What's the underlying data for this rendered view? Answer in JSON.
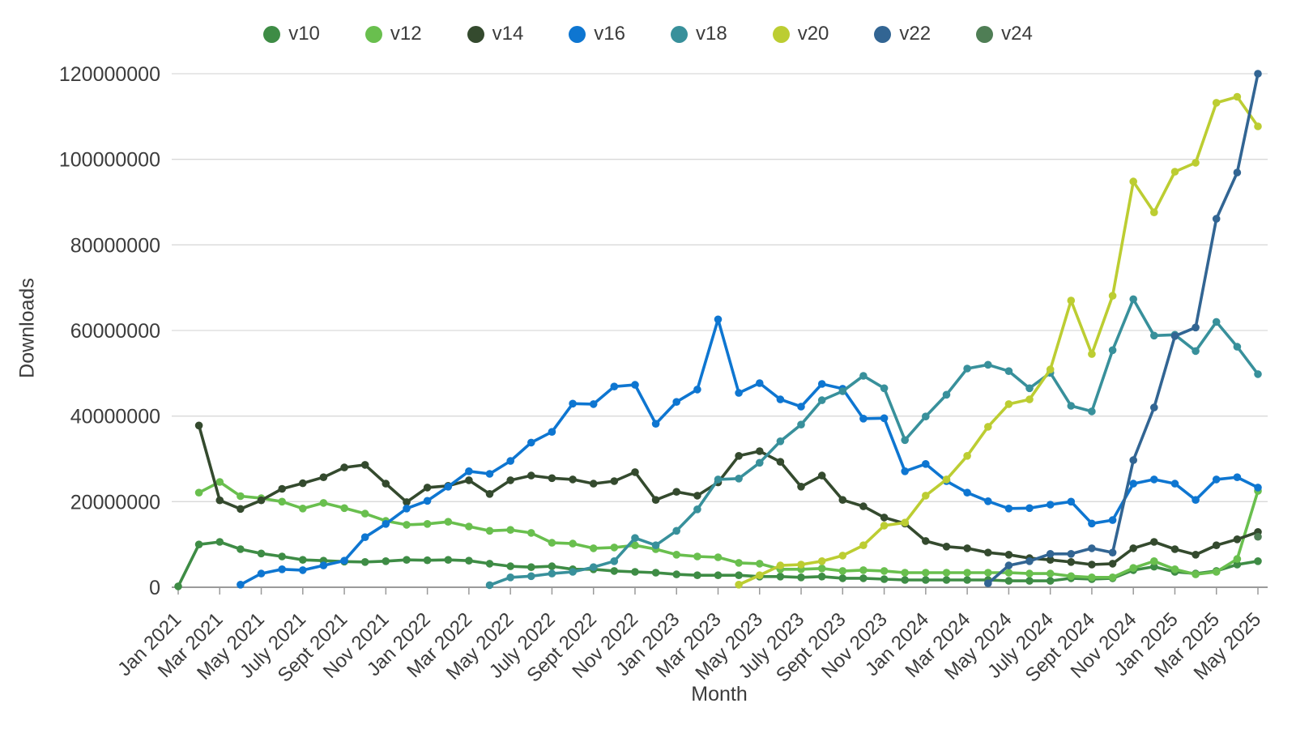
{
  "chart_data": {
    "type": "line",
    "title": "",
    "xlabel": "Month",
    "ylabel": "Downloads",
    "grid": true,
    "legend_position": "top",
    "ylim": [
      0,
      120000000
    ],
    "y_ticks": [
      0,
      20000000,
      40000000,
      60000000,
      80000000,
      100000000,
      120000000
    ],
    "x": [
      "Jan 2021",
      "Feb 2021",
      "Mar 2021",
      "Apr 2021",
      "May 2021",
      "June 2021",
      "July 2021",
      "Aug 2021",
      "Sept 2021",
      "Oct 2021",
      "Nov 2021",
      "Dec 2021",
      "Jan 2022",
      "Feb 2022",
      "Mar 2022",
      "Apr 2022",
      "May 2022",
      "June 2022",
      "July 2022",
      "Aug 2022",
      "Sept 2022",
      "Oct 2022",
      "Nov 2022",
      "Dec 2022",
      "Jan 2023",
      "Feb 2023",
      "Mar 2023",
      "Apr 2023",
      "May 2023",
      "June 2023",
      "July 2023",
      "Aug 2023",
      "Sept 2023",
      "Oct 2023",
      "Nov 2023",
      "Dec 2023",
      "Jan 2024",
      "Feb 2024",
      "Mar 2024",
      "Apr 2024",
      "May 2024",
      "June 2024",
      "July 2024",
      "Aug 2024",
      "Sept 2024",
      "Oct 2024",
      "Nov 2024",
      "Dec 2024",
      "Jan 2025",
      "Feb 2025",
      "Mar 2025",
      "Apr 2025",
      "May 2025"
    ],
    "x_tick_every": 2,
    "series": [
      {
        "name": "v10",
        "color": "#3e8c45",
        "values": [
          200000,
          10000000,
          10600000,
          8900000,
          7900000,
          7200000,
          6400000,
          6200000,
          6000000,
          5900000,
          6100000,
          6400000,
          6300000,
          6400000,
          6200000,
          5500000,
          4900000,
          4700000,
          4900000,
          4200000,
          4200000,
          3800000,
          3600000,
          3400000,
          3000000,
          2800000,
          2800000,
          2800000,
          2500000,
          2500000,
          2300000,
          2500000,
          2100000,
          2100000,
          1900000,
          1700000,
          1700000,
          1700000,
          1700000,
          1700000,
          1500000,
          1500000,
          1500000,
          2100000,
          1900000,
          2100000,
          4000000,
          4800000,
          3600000,
          3200000,
          3800000,
          5300000,
          6100000
        ]
      },
      {
        "name": "v12",
        "color": "#69bf4e",
        "values": [
          null,
          22100000,
          24600000,
          21300000,
          20800000,
          20000000,
          18400000,
          19700000,
          18500000,
          17200000,
          15500000,
          14600000,
          14800000,
          15300000,
          14200000,
          13200000,
          13400000,
          12700000,
          10400000,
          10200000,
          9100000,
          9300000,
          9800000,
          8900000,
          7600000,
          7200000,
          7000000,
          5700000,
          5500000,
          4200000,
          4200000,
          4400000,
          3800000,
          4000000,
          3800000,
          3400000,
          3400000,
          3400000,
          3400000,
          3400000,
          3400000,
          3200000,
          3200000,
          2600000,
          2300000,
          2300000,
          4500000,
          6100000,
          4200000,
          3000000,
          3600000,
          6600000,
          22500000
        ]
      },
      {
        "name": "v14",
        "color": "#344a2e",
        "values": [
          null,
          37800000,
          20300000,
          18300000,
          20300000,
          23000000,
          24300000,
          25700000,
          28000000,
          28600000,
          24200000,
          19900000,
          23300000,
          23700000,
          25000000,
          21800000,
          25000000,
          26100000,
          25500000,
          25200000,
          24200000,
          24800000,
          26900000,
          20400000,
          22300000,
          21400000,
          24500000,
          30700000,
          31800000,
          29300000,
          23500000,
          26100000,
          20400000,
          18900000,
          16300000,
          14900000,
          10800000,
          9500000,
          9100000,
          8100000,
          7600000,
          6800000,
          6400000,
          5900000,
          5300000,
          5500000,
          9100000,
          10600000,
          8900000,
          7600000,
          9800000,
          11200000,
          12900000
        ]
      },
      {
        "name": "v16",
        "color": "#0e76d1",
        "values": [
          null,
          null,
          null,
          600000,
          3200000,
          4200000,
          4000000,
          5100000,
          6200000,
          11700000,
          14800000,
          18400000,
          20200000,
          23500000,
          27100000,
          26500000,
          29500000,
          33800000,
          36300000,
          42900000,
          42800000,
          46900000,
          47300000,
          38200000,
          43300000,
          46200000,
          62600000,
          45400000,
          47700000,
          43900000,
          42200000,
          47500000,
          46400000,
          39400000,
          39500000,
          27100000,
          28800000,
          24800000,
          22100000,
          20100000,
          18400000,
          18500000,
          19300000,
          20000000,
          14900000,
          15700000,
          24200000,
          25200000,
          24200000,
          20400000,
          25200000,
          25700000,
          23300000
        ]
      },
      {
        "name": "v18",
        "color": "#38909b",
        "values": [
          null,
          null,
          null,
          null,
          null,
          null,
          null,
          null,
          null,
          null,
          null,
          null,
          null,
          null,
          null,
          500000,
          2300000,
          2600000,
          3200000,
          3600000,
          4700000,
          6100000,
          11500000,
          9800000,
          13200000,
          18200000,
          25200000,
          25400000,
          29100000,
          34100000,
          38000000,
          43700000,
          45800000,
          49400000,
          46500000,
          34400000,
          39900000,
          45000000,
          51100000,
          52000000,
          50500000,
          46500000,
          50100000,
          42400000,
          41100000,
          55400000,
          67300000,
          58800000,
          59000000,
          55200000,
          62000000,
          56200000,
          49800000
        ]
      },
      {
        "name": "v20",
        "color": "#bccd32",
        "values": [
          null,
          null,
          null,
          null,
          null,
          null,
          null,
          null,
          null,
          null,
          null,
          null,
          null,
          null,
          null,
          null,
          null,
          null,
          null,
          null,
          null,
          null,
          null,
          null,
          null,
          null,
          null,
          600000,
          2800000,
          5100000,
          5300000,
          6100000,
          7400000,
          9800000,
          14400000,
          15100000,
          21400000,
          25200000,
          30700000,
          37500000,
          42800000,
          43900000,
          50900000,
          67000000,
          54500000,
          68100000,
          94800000,
          87600000,
          97100000,
          99200000,
          113200000,
          114600000,
          107700000
        ]
      },
      {
        "name": "v22",
        "color": "#326593",
        "values": [
          null,
          null,
          null,
          null,
          null,
          null,
          null,
          null,
          null,
          null,
          null,
          null,
          null,
          null,
          null,
          null,
          null,
          null,
          null,
          null,
          null,
          null,
          null,
          null,
          null,
          null,
          null,
          null,
          null,
          null,
          null,
          null,
          null,
          null,
          null,
          null,
          null,
          null,
          null,
          900000,
          5100000,
          6100000,
          7800000,
          7800000,
          9100000,
          8100000,
          29700000,
          42000000,
          58700000,
          60700000,
          86100000,
          96900000,
          120000000
        ]
      },
      {
        "name": "v24",
        "color": "#4f7e55",
        "values": [
          null,
          null,
          null,
          null,
          null,
          null,
          null,
          null,
          null,
          null,
          null,
          null,
          null,
          null,
          null,
          null,
          null,
          null,
          null,
          null,
          null,
          null,
          null,
          null,
          null,
          null,
          null,
          null,
          null,
          null,
          null,
          null,
          null,
          null,
          null,
          null,
          null,
          null,
          null,
          null,
          null,
          null,
          null,
          null,
          null,
          null,
          null,
          null,
          null,
          null,
          null,
          null,
          11800000
        ]
      }
    ]
  },
  "style_colors": {
    "gridline": "#d9d9d9",
    "axis_line": "#9a9a9a",
    "tick_text": "#3c3c3c"
  }
}
